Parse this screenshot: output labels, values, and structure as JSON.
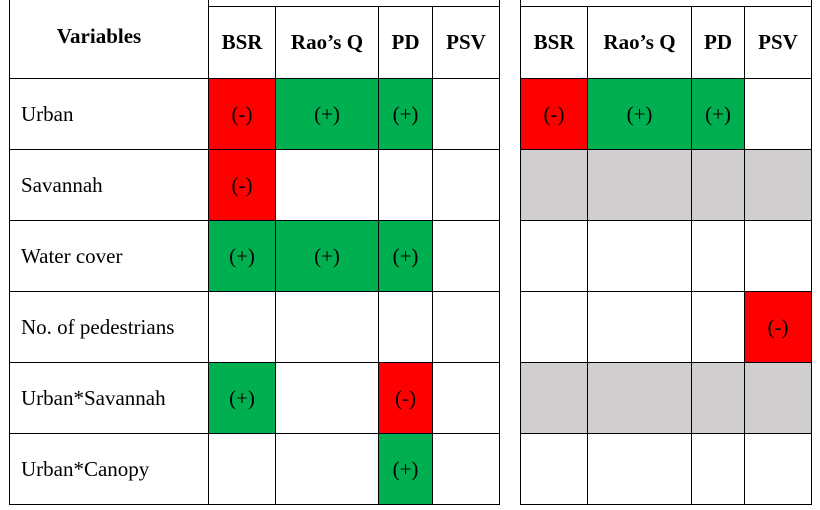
{
  "header": {
    "variables_label": "Variables",
    "left_columns": [
      "BSR",
      "Rao’s Q",
      "PD",
      "PSV"
    ],
    "right_columns": [
      "BSR",
      "Rao’s Q",
      "PD",
      "PSV"
    ]
  },
  "rows": [
    {
      "label": "Urban",
      "left": [
        {
          "text": "(-)",
          "color": "red"
        },
        {
          "text": "(+)",
          "color": "green"
        },
        {
          "text": "(+)",
          "color": "green"
        },
        {
          "text": "",
          "color": "white"
        }
      ],
      "right": [
        {
          "text": "(-)",
          "color": "red"
        },
        {
          "text": "(+)",
          "color": "green"
        },
        {
          "text": "(+)",
          "color": "green"
        },
        {
          "text": "",
          "color": "white"
        }
      ]
    },
    {
      "label": "Savannah",
      "left": [
        {
          "text": "(-)",
          "color": "red"
        },
        {
          "text": "",
          "color": "white"
        },
        {
          "text": "",
          "color": "white"
        },
        {
          "text": "",
          "color": "white"
        }
      ],
      "right": [
        {
          "text": "",
          "color": "grey"
        },
        {
          "text": "",
          "color": "grey"
        },
        {
          "text": "",
          "color": "grey"
        },
        {
          "text": "",
          "color": "grey"
        }
      ]
    },
    {
      "label": "Water cover",
      "left": [
        {
          "text": "(+)",
          "color": "green"
        },
        {
          "text": "(+)",
          "color": "green"
        },
        {
          "text": "(+)",
          "color": "green"
        },
        {
          "text": "",
          "color": "white"
        }
      ],
      "right": [
        {
          "text": "",
          "color": "white"
        },
        {
          "text": "",
          "color": "white"
        },
        {
          "text": "",
          "color": "white"
        },
        {
          "text": "",
          "color": "white"
        }
      ]
    },
    {
      "label": "No. of pedestrians",
      "left": [
        {
          "text": "",
          "color": "white"
        },
        {
          "text": "",
          "color": "white"
        },
        {
          "text": "",
          "color": "white"
        },
        {
          "text": "",
          "color": "white"
        }
      ],
      "right": [
        {
          "text": "",
          "color": "white"
        },
        {
          "text": "",
          "color": "white"
        },
        {
          "text": "",
          "color": "white"
        },
        {
          "text": "(-)",
          "color": "red"
        }
      ]
    },
    {
      "label": "Urban*Savannah",
      "left": [
        {
          "text": "(+)",
          "color": "green"
        },
        {
          "text": "",
          "color": "white"
        },
        {
          "text": "(-)",
          "color": "red"
        },
        {
          "text": "",
          "color": "white"
        }
      ],
      "right": [
        {
          "text": "",
          "color": "grey"
        },
        {
          "text": "",
          "color": "grey"
        },
        {
          "text": "",
          "color": "grey"
        },
        {
          "text": "",
          "color": "grey"
        }
      ]
    },
    {
      "label": "Urban*Canopy",
      "left": [
        {
          "text": "",
          "color": "white"
        },
        {
          "text": "",
          "color": "white"
        },
        {
          "text": "(+)",
          "color": "green"
        },
        {
          "text": "",
          "color": "white"
        }
      ],
      "right": [
        {
          "text": "",
          "color": "white"
        },
        {
          "text": "",
          "color": "white"
        },
        {
          "text": "",
          "color": "white"
        },
        {
          "text": "",
          "color": "white"
        }
      ]
    }
  ],
  "colors": {
    "green": "#00b050",
    "red": "#ff0000",
    "grey": "#d0cece",
    "white": "#ffffff"
  }
}
